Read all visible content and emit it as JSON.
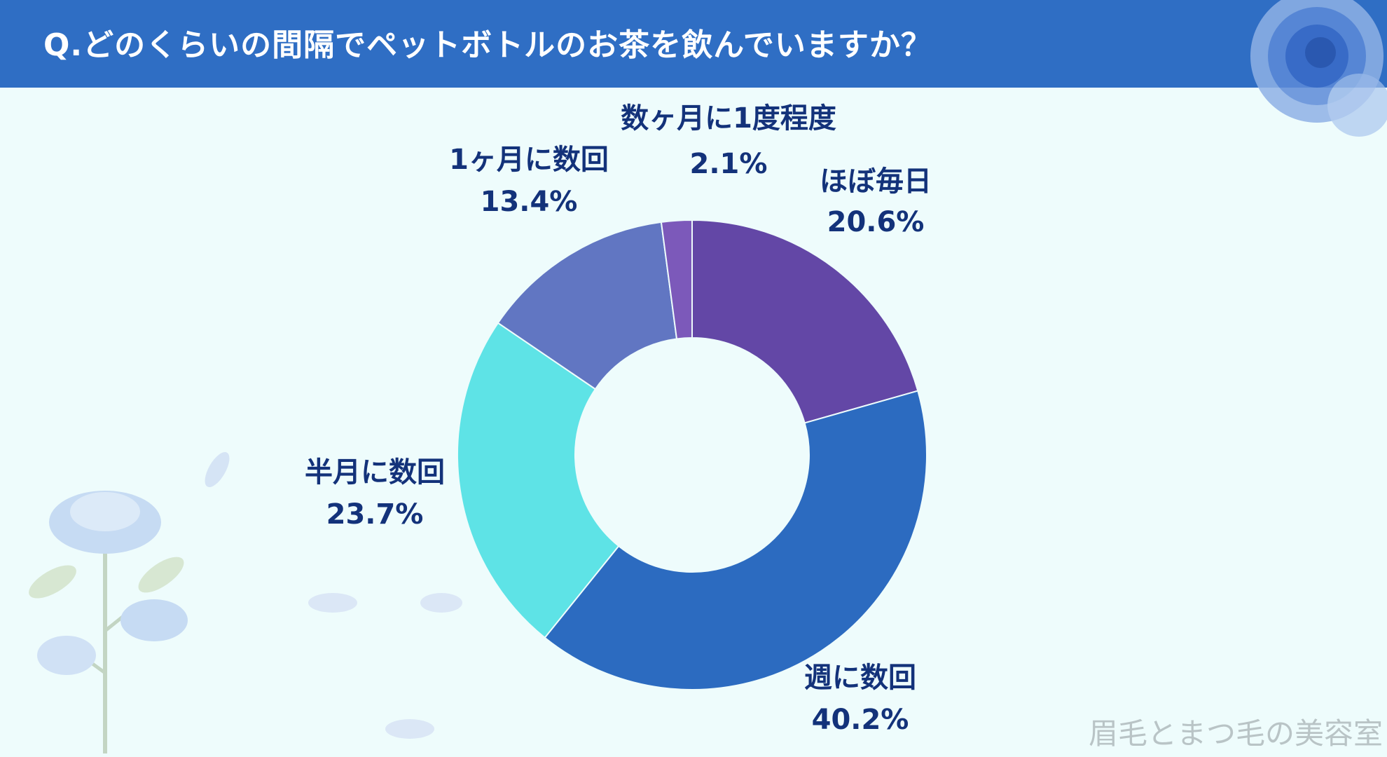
{
  "header": {
    "title": "Q.どのくらいの間隔でペットボトルのお茶を飲んでいますか？"
  },
  "watermark": "眉毛とまつ毛の美容室",
  "colors": {
    "header": "#2f6ec4",
    "background": "#eefcfc",
    "label_text": "#13327a"
  },
  "chart_data": {
    "type": "pie",
    "style": "donut",
    "categories": [
      "ほぼ毎日",
      "週に数回",
      "半月に数回",
      "1ヶ月に数回",
      "数ヶ月に1度程度"
    ],
    "values": [
      20.6,
      40.2,
      23.7,
      13.4,
      2.1
    ],
    "value_labels": [
      "20.6%",
      "40.2%",
      "23.7%",
      "13.4%",
      "2.1%"
    ],
    "colors": [
      "#6347a6",
      "#2c6bc0",
      "#5ee3e6",
      "#6176c2",
      "#7c59ba"
    ],
    "start": "top, clockwise"
  }
}
